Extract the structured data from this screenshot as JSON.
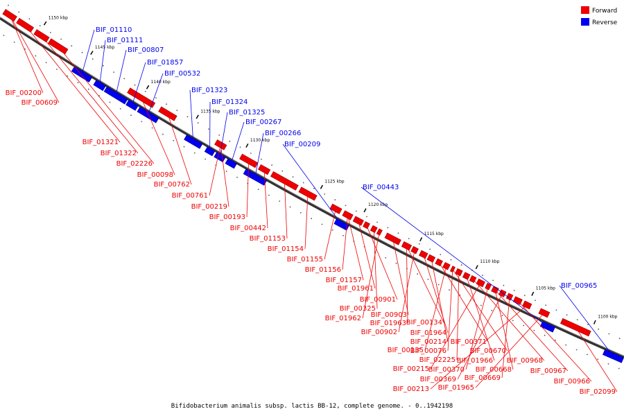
{
  "title": "Bifidobacterium animalis subsp. lactis BB-12, complete genome. - 0..1942198",
  "legend": [
    {
      "label": "Forward",
      "color": "#ee0000"
    },
    {
      "label": "Reverse",
      "color": "#0000ee"
    }
  ],
  "ticks": [
    "1150 kbp",
    "1145 kbp",
    "1140 kbp",
    "1135 kbp",
    "1130 kbp",
    "1125 kbp",
    "1120 kbp",
    "1115 kbp",
    "1110 kbp",
    "1105 kbp",
    "1100 kbp"
  ],
  "forward_labels": [
    "BIF_00200",
    "BIF_00609",
    "BIF_01321",
    "BIF_01322",
    "BIF_02226",
    "BIF_00098",
    "BIF_00762",
    "BIF_00761",
    "BIF_00219",
    "BIF_00193",
    "BIF_00442",
    "BIF_01153",
    "BIF_01154",
    "BIF_01155",
    "BIF_01156",
    "BIF_01157",
    "BIF_01961",
    "BIF_00901",
    "BIF_00325",
    "BIF_01962",
    "BIF_00903",
    "BIF_01963",
    "BIF_00134",
    "BIF_00902",
    "BIF_01964",
    "BIF_00214",
    "BIF_00371",
    "BIF_00135",
    "BIF_00076",
    "BIF_00670",
    "BIF_02225",
    "BIF_01966",
    "BIF_00968",
    "BIF_00215",
    "BIF_00370",
    "BIF_00668",
    "BIF_00967",
    "BIF_00369",
    "BIF_00669",
    "BIF_00966",
    "BIF_00213",
    "BIF_01965",
    "BIF_02099"
  ],
  "reverse_labels": [
    "BIF_01110",
    "BIF_01111",
    "BIF_00807",
    "BIF_01857",
    "BIF_00532",
    "BIF_01323",
    "BIF_01324",
    "BIF_01325",
    "BIF_00267",
    "BIF_00266",
    "BIF_00209",
    "BIF_00443",
    "BIF_00965"
  ]
}
